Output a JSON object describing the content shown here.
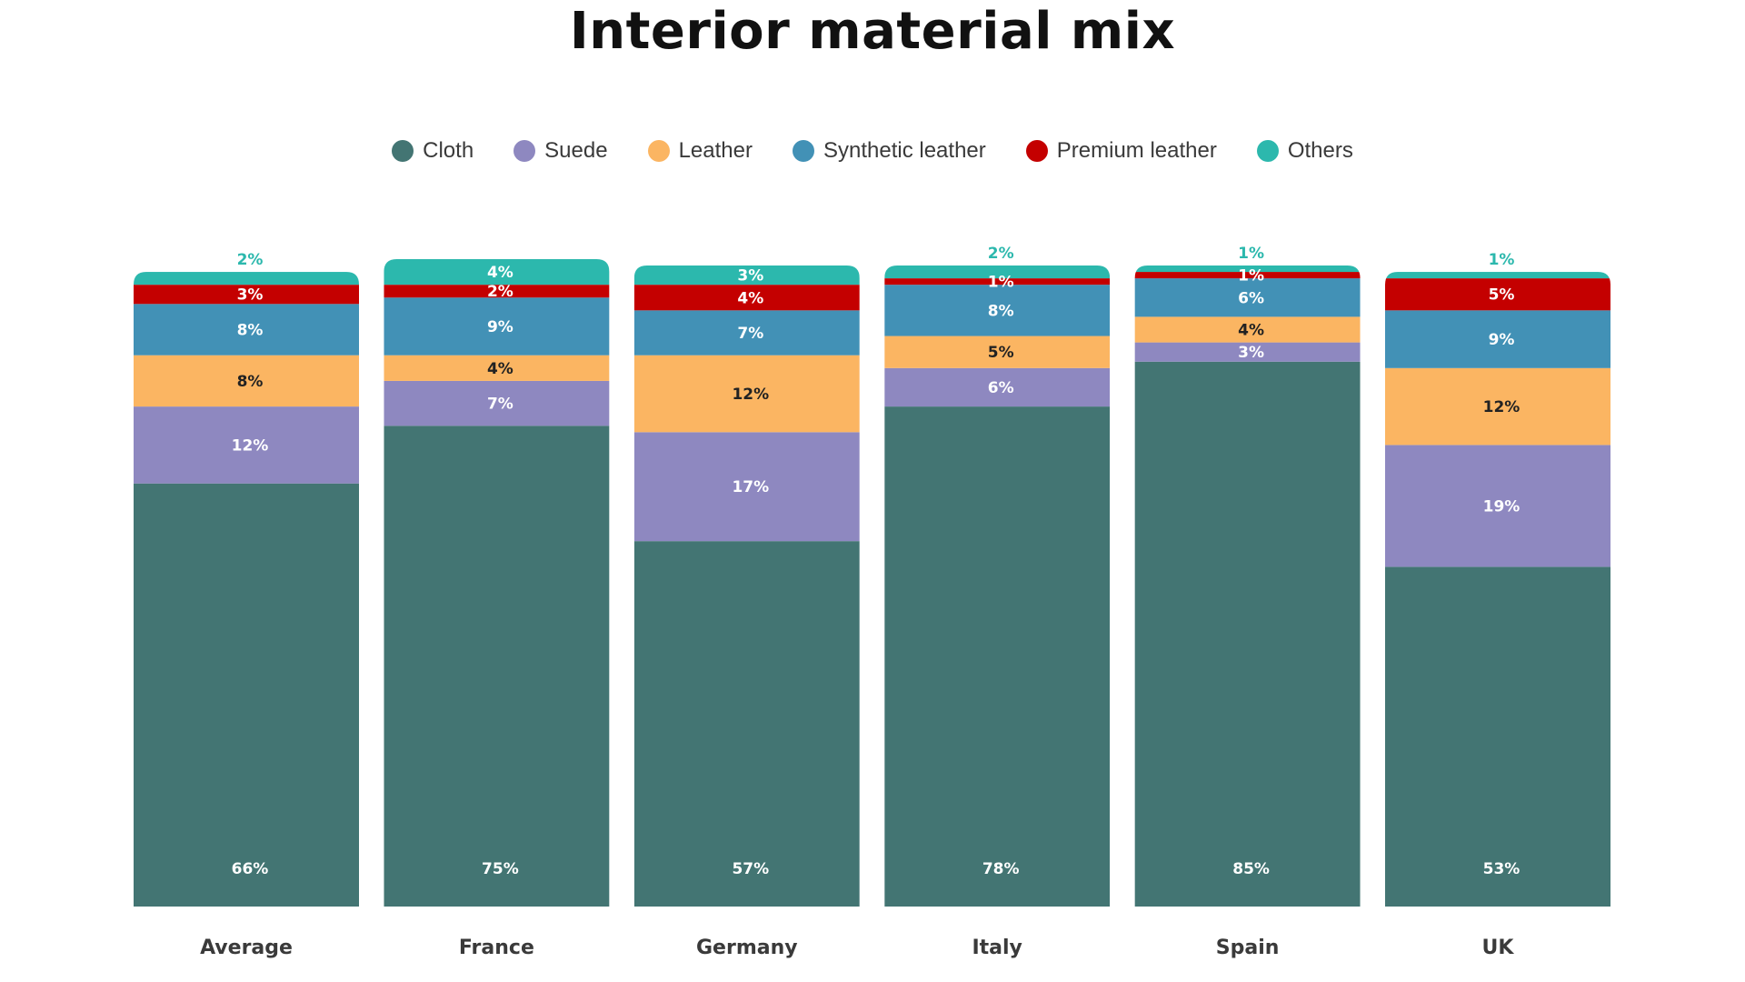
{
  "chart_data": {
    "type": "bar",
    "stacked": true,
    "title": "Interior material mix",
    "categories": [
      "Average",
      "France",
      "Germany",
      "Italy",
      "Spain",
      "UK"
    ],
    "series": [
      {
        "name": "Cloth",
        "color": "#437573",
        "labels": [
          "66%",
          "75%",
          "57%",
          "78%",
          "85%",
          "53%"
        ],
        "values": [
          66,
          75,
          57,
          78,
          85,
          53
        ]
      },
      {
        "name": "Suede",
        "color": "#8e88c0",
        "labels": [
          "12%",
          "7%",
          "17%",
          "6%",
          "3%",
          "19%"
        ],
        "values": [
          12,
          7,
          17,
          6,
          3,
          19
        ]
      },
      {
        "name": "Leather",
        "color": "#fbb562",
        "labels": [
          "8%",
          "4%",
          "12%",
          "5%",
          "4%",
          "12%"
        ],
        "values": [
          8,
          4,
          12,
          5,
          4,
          12
        ]
      },
      {
        "name": "Synthetic leather",
        "color": "#4291b6",
        "labels": [
          "8%",
          "9%",
          "7%",
          "8%",
          "6%",
          "9%"
        ],
        "values": [
          8,
          9,
          7,
          8,
          6,
          9
        ]
      },
      {
        "name": "Premium leather",
        "color": "#c40000",
        "labels": [
          "3%",
          "2%",
          "4%",
          "1%",
          "1%",
          "5%"
        ],
        "values": [
          3,
          2,
          4,
          1,
          1,
          5
        ]
      },
      {
        "name": "Others",
        "color": "#2cb8ad",
        "labels": [
          "2%",
          "4%",
          "3%",
          "2%",
          "1%",
          "1%"
        ],
        "values": [
          2,
          4,
          3,
          2,
          1,
          1
        ]
      }
    ],
    "legend_position": "top-center",
    "grid": false,
    "xlabel": "",
    "ylabel": ""
  }
}
